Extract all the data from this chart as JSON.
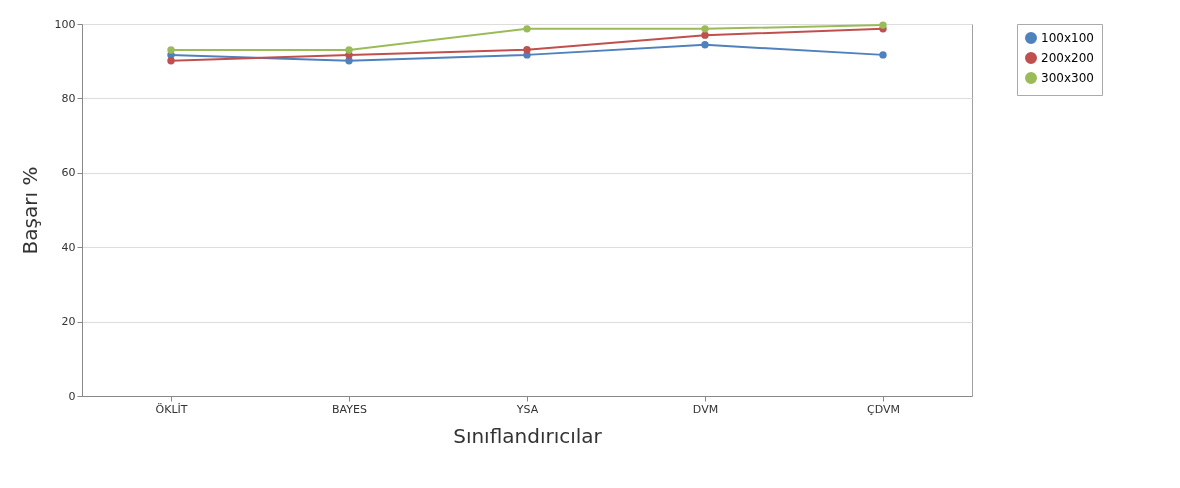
{
  "chart_data": {
    "type": "line",
    "xlabel": "Sınıflandırıcılar",
    "ylabel": "Başarı %",
    "categories": [
      "ÖKLİT",
      "BAYES",
      "YSA",
      "DVM",
      "ÇDVM"
    ],
    "series": [
      {
        "name": "100x100",
        "color": "#4f81bd",
        "values": [
          91.7,
          90.1,
          91.7,
          94.4,
          91.7
        ]
      },
      {
        "name": "200x200",
        "color": "#c0504d",
        "values": [
          90.1,
          91.7,
          93.1,
          97.0,
          98.7
        ]
      },
      {
        "name": "300x300",
        "color": "#9bbb59",
        "values": [
          93.0,
          93.0,
          98.7,
          98.7,
          99.7
        ]
      }
    ],
    "ylim": [
      0,
      100
    ],
    "yticks": [
      0,
      20,
      40,
      60,
      80,
      100
    ],
    "grid": "y",
    "legend": "top right",
    "marker": "circle",
    "line_style": "solid"
  }
}
